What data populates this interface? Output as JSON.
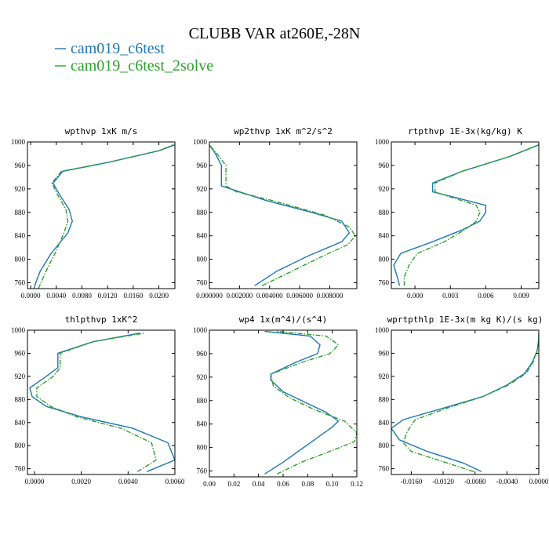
{
  "figure": {
    "title": "CLUBB VAR at260E,-28N",
    "legend": [
      {
        "label": "cam019_c6test",
        "color": "#1f77b4"
      },
      {
        "label": "cam019_c6test_2solve",
        "color": "#2ca02c"
      }
    ]
  },
  "chart_data": [
    {
      "type": "line",
      "title": "wpthvp  1xK m/s",
      "xlim": [
        -0.0005,
        0.0225
      ],
      "ylim": [
        1000,
        750
      ],
      "y_ticks": [
        760,
        800,
        840,
        880,
        920,
        960,
        1000
      ],
      "x_ticks": [
        0.0,
        0.004,
        0.008,
        0.012,
        0.016,
        0.02
      ],
      "x_tick_labels": [
        "0.0000",
        "0.0040",
        "0.0080",
        "0.0120",
        "0.0160",
        "0.0200"
      ],
      "series": [
        {
          "name": "cam019_c6test",
          "points": [
            [
              0.0005,
              750
            ],
            [
              0.0008,
              760
            ],
            [
              0.0015,
              780
            ],
            [
              0.0032,
              810
            ],
            [
              0.0058,
              845
            ],
            [
              0.0065,
              865
            ],
            [
              0.006,
              885
            ],
            [
              0.0045,
              910
            ],
            [
              0.0035,
              930
            ],
            [
              0.005,
              950
            ],
            [
              0.012,
              965
            ],
            [
              0.02,
              985
            ],
            [
              0.0225,
              995
            ]
          ]
        },
        {
          "name": "cam019_c6test_2solve",
          "points": [
            [
              0.0012,
              750
            ],
            [
              0.0016,
              760
            ],
            [
              0.0024,
              780
            ],
            [
              0.0038,
              810
            ],
            [
              0.0052,
              845
            ],
            [
              0.0058,
              865
            ],
            [
              0.0055,
              885
            ],
            [
              0.0042,
              910
            ],
            [
              0.0033,
              930
            ],
            [
              0.0048,
              950
            ],
            [
              0.012,
              965
            ],
            [
              0.02,
              985
            ],
            [
              0.0222,
              995
            ]
          ]
        }
      ]
    },
    {
      "type": "line",
      "title": "wp2thvp  1xK m^2/s^2",
      "xlim": [
        0.0,
        0.0098
      ],
      "ylim": [
        1000,
        750
      ],
      "y_ticks": [
        760,
        800,
        840,
        880,
        920,
        960,
        1000
      ],
      "x_ticks": [
        0.0,
        0.002,
        0.004,
        0.006,
        0.008
      ],
      "x_tick_labels": [
        "0.000000",
        "0.002000",
        "0.004000",
        "0.006000",
        "0.008000"
      ],
      "series": [
        {
          "name": "cam019_c6test",
          "points": [
            [
              0.003,
              755
            ],
            [
              0.0045,
              780
            ],
            [
              0.0065,
              805
            ],
            [
              0.0088,
              830
            ],
            [
              0.0093,
              845
            ],
            [
              0.0088,
              865
            ],
            [
              0.0068,
              880
            ],
            [
              0.0038,
              900
            ],
            [
              0.002,
              915
            ],
            [
              0.0008,
              925
            ],
            [
              0.0008,
              945
            ],
            [
              0.0008,
              960
            ],
            [
              0.0004,
              980
            ],
            [
              0.0,
              995
            ]
          ]
        },
        {
          "name": "cam019_c6test_2solve",
          "points": [
            [
              0.0035,
              755
            ],
            [
              0.0055,
              780
            ],
            [
              0.0075,
              805
            ],
            [
              0.0092,
              825
            ],
            [
              0.0097,
              840
            ],
            [
              0.0093,
              855
            ],
            [
              0.0077,
              875
            ],
            [
              0.0042,
              900
            ],
            [
              0.0018,
              915
            ],
            [
              0.0011,
              925
            ],
            [
              0.0011,
              945
            ],
            [
              0.0011,
              960
            ],
            [
              0.0005,
              980
            ],
            [
              0.0,
              995
            ]
          ]
        }
      ]
    },
    {
      "type": "line",
      "title": "rtpthvp  1E-3x(kg/kg) K",
      "xlim": [
        -0.002,
        0.0105
      ],
      "ylim": [
        1000,
        750
      ],
      "y_ticks": [
        760,
        800,
        840,
        880,
        920,
        960,
        1000
      ],
      "x_ticks": [
        0.0,
        0.003,
        0.006,
        0.009
      ],
      "x_tick_labels": [
        "0.000",
        "0.003",
        "0.006",
        "0.009"
      ],
      "series": [
        {
          "name": "cam019_c6test",
          "points": [
            [
              -0.0013,
              755
            ],
            [
              -0.0015,
              770
            ],
            [
              -0.0018,
              790
            ],
            [
              -0.0012,
              810
            ],
            [
              0.0015,
              830
            ],
            [
              0.004,
              850
            ],
            [
              0.0055,
              865
            ],
            [
              0.006,
              880
            ],
            [
              0.006,
              892
            ],
            [
              0.0035,
              905
            ],
            [
              0.0015,
              915
            ],
            [
              0.0015,
              930
            ],
            [
              0.004,
              950
            ],
            [
              0.008,
              975
            ],
            [
              0.0105,
              995
            ]
          ]
        },
        {
          "name": "cam019_c6test_2solve",
          "points": [
            [
              -0.0009,
              755
            ],
            [
              -0.0009,
              770
            ],
            [
              -0.0005,
              790
            ],
            [
              0.0002,
              810
            ],
            [
              0.0025,
              830
            ],
            [
              0.0042,
              850
            ],
            [
              0.0052,
              865
            ],
            [
              0.0055,
              880
            ],
            [
              0.0052,
              892
            ],
            [
              0.0032,
              905
            ],
            [
              0.0017,
              915
            ],
            [
              0.0017,
              930
            ],
            [
              0.004,
              950
            ],
            [
              0.008,
              975
            ],
            [
              0.0105,
              995
            ]
          ]
        }
      ]
    },
    {
      "type": "line",
      "title": "thlpthvp  1xK^2",
      "xlim": [
        -0.0003,
        0.006
      ],
      "ylim": [
        1000,
        750
      ],
      "y_ticks": [
        760,
        800,
        840,
        880,
        920,
        960,
        1000
      ],
      "x_ticks": [
        0.0,
        0.002,
        0.004,
        0.006
      ],
      "x_tick_labels": [
        "0.0000",
        "0.0020",
        "0.0040",
        "0.0060"
      ],
      "series": [
        {
          "name": "cam019_c6test",
          "points": [
            [
              0.0048,
              755
            ],
            [
              0.006,
              775
            ],
            [
              0.0057,
              805
            ],
            [
              0.0042,
              830
            ],
            [
              0.002,
              850
            ],
            [
              0.0005,
              868
            ],
            [
              -0.0001,
              885
            ],
            [
              -0.0002,
              900
            ],
            [
              0.0005,
              920
            ],
            [
              0.001,
              935
            ],
            [
              0.001,
              960
            ],
            [
              0.0025,
              980
            ],
            [
              0.0045,
              995
            ]
          ]
        },
        {
          "name": "cam019_c6test_2solve",
          "points": [
            [
              0.0044,
              755
            ],
            [
              0.0052,
              775
            ],
            [
              0.005,
              805
            ],
            [
              0.0037,
              830
            ],
            [
              0.0018,
              850
            ],
            [
              0.0007,
              868
            ],
            [
              0.0001,
              885
            ],
            [
              0.0001,
              900
            ],
            [
              0.0008,
              920
            ],
            [
              0.0011,
              935
            ],
            [
              0.0011,
              960
            ],
            [
              0.0025,
              980
            ],
            [
              0.0047,
              995
            ]
          ]
        }
      ]
    },
    {
      "type": "line",
      "title": "wp4  1x(m^4)/(s^4)",
      "xlim": [
        0.0,
        0.12
      ],
      "ylim": [
        1000,
        750
      ],
      "y_ticks": [
        760,
        800,
        840,
        880,
        920,
        960,
        1000
      ],
      "x_ticks": [
        0.0,
        0.02,
        0.04,
        0.06,
        0.08,
        0.1,
        0.12
      ],
      "x_tick_labels": [
        "0.00",
        "0.02",
        "0.04",
        "0.06",
        "0.08",
        "0.10",
        "0.12"
      ],
      "series": [
        {
          "name": "cam019_c6test",
          "points": [
            [
              0.045,
              755
            ],
            [
              0.06,
              775
            ],
            [
              0.08,
              805
            ],
            [
              0.1,
              835
            ],
            [
              0.105,
              845
            ],
            [
              0.095,
              860
            ],
            [
              0.075,
              880
            ],
            [
              0.06,
              895
            ],
            [
              0.05,
              915
            ],
            [
              0.05,
              925
            ],
            [
              0.07,
              945
            ],
            [
              0.088,
              960
            ],
            [
              0.09,
              975
            ],
            [
              0.082,
              990
            ],
            [
              0.045,
              998
            ]
          ]
        },
        {
          "name": "cam019_c6test_2solve",
          "points": [
            [
              0.055,
              755
            ],
            [
              0.075,
              775
            ],
            [
              0.1,
              795
            ],
            [
              0.118,
              810
            ],
            [
              0.12,
              825
            ],
            [
              0.11,
              845
            ],
            [
              0.085,
              865
            ],
            [
              0.065,
              885
            ],
            [
              0.052,
              905
            ],
            [
              0.05,
              925
            ],
            [
              0.075,
              945
            ],
            [
              0.098,
              960
            ],
            [
              0.105,
              975
            ],
            [
              0.095,
              990
            ],
            [
              0.055,
              998
            ]
          ]
        }
      ]
    },
    {
      "type": "line",
      "title": "wprtpthlp  1E-3x(m kg K)/(s kg)",
      "xlim": [
        -0.0185,
        0.0
      ],
      "ylim": [
        1000,
        750
      ],
      "y_ticks": [
        760,
        800,
        840,
        880,
        920,
        960,
        1000
      ],
      "x_ticks": [
        -0.016,
        -0.012,
        -0.008,
        -0.004,
        0.0
      ],
      "x_tick_labels": [
        "-0.0160",
        "-0.0120",
        "-0.0080",
        "-0.0040",
        "0.0000"
      ],
      "series": [
        {
          "name": "cam019_c6test",
          "points": [
            [
              -0.0072,
              755
            ],
            [
              -0.0095,
              770
            ],
            [
              -0.014,
              790
            ],
            [
              -0.0175,
              810
            ],
            [
              -0.0185,
              830
            ],
            [
              -0.017,
              845
            ],
            [
              -0.012,
              865
            ],
            [
              -0.007,
              885
            ],
            [
              -0.004,
              905
            ],
            [
              -0.0018,
              925
            ],
            [
              -0.0008,
              945
            ],
            [
              -0.0002,
              965
            ],
            [
              0.0,
              985
            ],
            [
              0.0,
              995
            ]
          ]
        },
        {
          "name": "cam019_c6test_2solve",
          "points": [
            [
              -0.0082,
              755
            ],
            [
              -0.0115,
              770
            ],
            [
              -0.016,
              790
            ],
            [
              -0.017,
              805
            ],
            [
              -0.0165,
              825
            ],
            [
              -0.0155,
              845
            ],
            [
              -0.0115,
              865
            ],
            [
              -0.007,
              885
            ],
            [
              -0.0038,
              905
            ],
            [
              -0.0016,
              925
            ],
            [
              -0.0007,
              945
            ],
            [
              -0.0002,
              965
            ],
            [
              0.0,
              985
            ],
            [
              0.0,
              995
            ]
          ]
        }
      ]
    }
  ]
}
